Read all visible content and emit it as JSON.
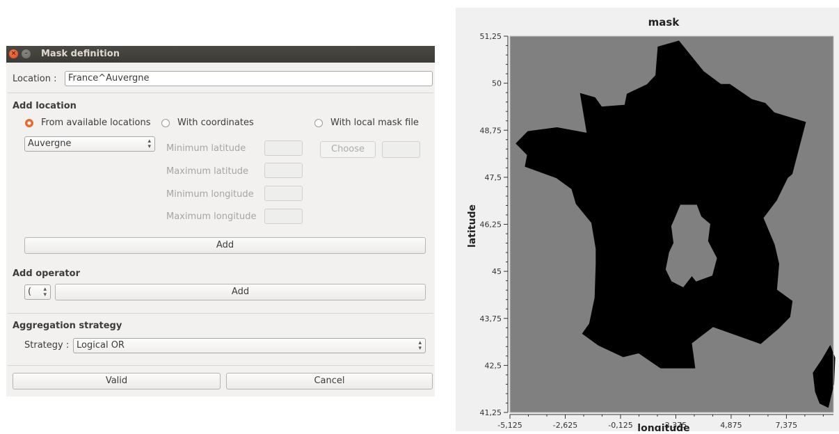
{
  "dialog": {
    "title": "Mask definition",
    "location": {
      "label": "Location :",
      "value": "France^Auvergne"
    },
    "add_location": {
      "heading": "Add location",
      "radio_available": "From available locations",
      "radio_coordinates": "With coordinates",
      "radio_local": "With local mask file",
      "selected_radio": "From available locations",
      "location_combo_value": "Auvergne",
      "min_lat_label": "Minimum latitude",
      "max_lat_label": "Maximum latitude",
      "min_lon_label": "Minimum longitude",
      "max_lon_label": "Maximum longitude",
      "choose_label": "Choose",
      "add_label": "Add"
    },
    "add_operator": {
      "heading": "Add operator",
      "operator_value": "(",
      "add_label": "Add"
    },
    "aggregation": {
      "heading": "Aggregation strategy",
      "strategy_label": "Strategy :",
      "strategy_value": "Logical OR"
    },
    "valid_label": "Valid",
    "cancel_label": "Cancel"
  },
  "chart_data": {
    "type": "heatmap",
    "title": "mask",
    "xlabel": "longitude",
    "ylabel": "latitude",
    "x_ticks": [
      "-5,125",
      "-2,625",
      "-0,125",
      "2,375",
      "4,875",
      "7,375"
    ],
    "y_ticks": [
      "51,25",
      "50",
      "48,75",
      "47,5",
      "46,25",
      "45",
      "43,75",
      "42,5",
      "41,25"
    ],
    "xlim": [
      -5.125,
      9.5
    ],
    "ylim": [
      41.25,
      51.25
    ],
    "colors": {
      "masked": "#000000",
      "unmasked": "#808080"
    },
    "description_regions": {
      "masked": "mainland France and Corsica (France^Auvergne)",
      "unmasked": "Auvergne region and outside France"
    },
    "mainland_outline": [
      [
        2.5,
        51.1
      ],
      [
        1.6,
        50.95
      ],
      [
        1.5,
        50.2
      ],
      [
        1.1,
        49.95
      ],
      [
        0.2,
        49.7
      ],
      [
        0.1,
        49.4
      ],
      [
        -1.0,
        49.35
      ],
      [
        -1.3,
        49.6
      ],
      [
        -1.9,
        49.7
      ],
      [
        -1.6,
        48.65
      ],
      [
        -3.0,
        48.8
      ],
      [
        -4.3,
        48.7
      ],
      [
        -4.8,
        48.4
      ],
      [
        -4.3,
        48.1
      ],
      [
        -4.4,
        47.8
      ],
      [
        -3.0,
        47.5
      ],
      [
        -2.3,
        47.2
      ],
      [
        -2.1,
        46.8
      ],
      [
        -1.4,
        46.3
      ],
      [
        -1.2,
        45.6
      ],
      [
        -1.2,
        45.2
      ],
      [
        -1.25,
        44.3
      ],
      [
        -1.5,
        43.6
      ],
      [
        -1.8,
        43.35
      ],
      [
        -1.1,
        43.05
      ],
      [
        0.0,
        42.75
      ],
      [
        0.7,
        42.85
      ],
      [
        1.7,
        42.45
      ],
      [
        3.2,
        42.45
      ],
      [
        3.05,
        43.1
      ],
      [
        4.05,
        43.55
      ],
      [
        5.0,
        43.35
      ],
      [
        6.2,
        43.1
      ],
      [
        7.0,
        43.5
      ],
      [
        7.5,
        43.8
      ],
      [
        7.6,
        44.2
      ],
      [
        6.9,
        44.5
      ],
      [
        7.0,
        45.2
      ],
      [
        6.8,
        45.7
      ],
      [
        6.3,
        46.4
      ],
      [
        6.0,
        46.2
      ],
      [
        6.9,
        46.9
      ],
      [
        7.4,
        47.5
      ],
      [
        7.6,
        47.6
      ],
      [
        8.2,
        48.95
      ],
      [
        6.8,
        49.2
      ],
      [
        6.4,
        49.45
      ],
      [
        5.8,
        49.55
      ],
      [
        4.8,
        49.95
      ],
      [
        4.4,
        49.95
      ],
      [
        3.6,
        50.3
      ],
      [
        2.5,
        51.1
      ]
    ],
    "auvergne_outline": [
      [
        2.6,
        46.75
      ],
      [
        3.3,
        46.75
      ],
      [
        3.5,
        46.45
      ],
      [
        3.9,
        46.25
      ],
      [
        3.8,
        45.8
      ],
      [
        4.2,
        45.35
      ],
      [
        4.0,
        44.9
      ],
      [
        3.3,
        44.75
      ],
      [
        3.1,
        44.9
      ],
      [
        2.7,
        44.6
      ],
      [
        2.2,
        44.75
      ],
      [
        1.95,
        45.05
      ],
      [
        2.1,
        45.5
      ],
      [
        2.3,
        45.75
      ],
      [
        2.2,
        46.2
      ],
      [
        2.35,
        46.4
      ],
      [
        2.6,
        46.75
      ]
    ],
    "corsica_outline": [
      [
        9.35,
        43.0
      ],
      [
        9.55,
        42.7
      ],
      [
        9.5,
        42.0
      ],
      [
        9.25,
        41.4
      ],
      [
        8.9,
        41.5
      ],
      [
        8.7,
        41.8
      ],
      [
        8.6,
        42.3
      ],
      [
        9.0,
        42.65
      ],
      [
        9.35,
        43.0
      ]
    ]
  }
}
